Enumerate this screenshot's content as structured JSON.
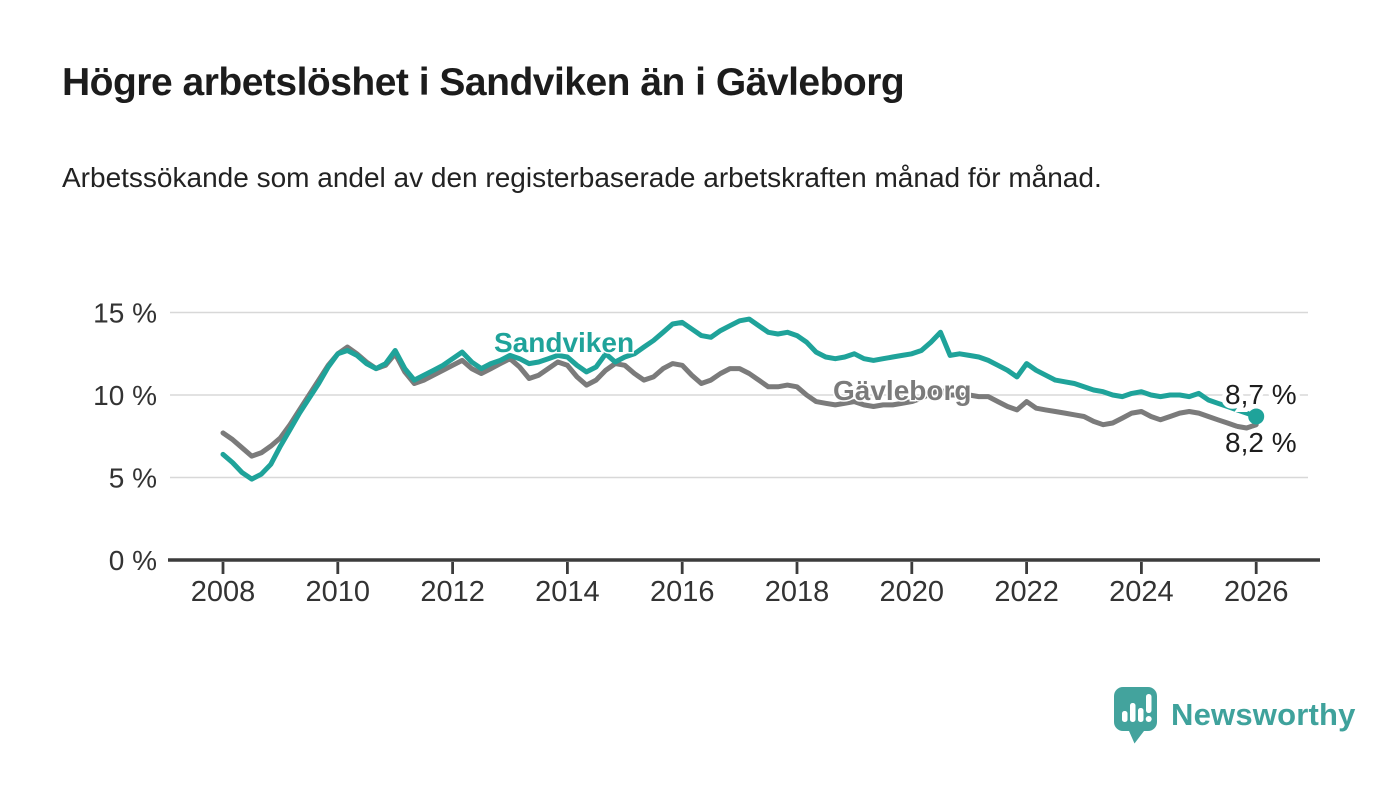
{
  "header": {
    "title": "Högre arbetslöshet i Sandviken än i Gävleborg",
    "subtitle": "Arbetssökande som andel av den registerbaserade arbetskraften månad för månad."
  },
  "chart_data": {
    "type": "line",
    "title": "Högre arbetslöshet i Sandviken än i Gävleborg",
    "subtitle": "Arbetssökande som andel av den registerbaserade arbetskraften månad för månad.",
    "x_unit": "year",
    "x_start": 2008.0,
    "x_step_years": 0.1666667,
    "x_ticks": [
      2008,
      2010,
      2012,
      2014,
      2016,
      2018,
      2020,
      2022,
      2024,
      2026
    ],
    "x_tick_labels": [
      "2008",
      "2010",
      "2012",
      "2014",
      "2016",
      "2018",
      "2020",
      "2022",
      "2024",
      "2026"
    ],
    "y_ticks": [
      0,
      5,
      10,
      15
    ],
    "y_tick_labels": [
      "0 %",
      "5 %",
      "10 %",
      "15 %"
    ],
    "ylim": [
      0,
      16
    ],
    "xlim": [
      2007.05,
      2026.9
    ],
    "grid": "horizontal",
    "legend_position": "inline-labels",
    "grid_color": "#d8d8d8",
    "axis_color": "#3c3c3c",
    "text_color": "#333333",
    "value_label_color": "#1d1d1d",
    "series": [
      {
        "name": "Sandviken",
        "color": "#1fa39a",
        "end_label": "8,7 %",
        "end_value": 8.7,
        "end_dot": true,
        "values": [
          6.4,
          5.9,
          5.3,
          4.9,
          5.2,
          5.8,
          6.9,
          7.9,
          8.9,
          9.8,
          10.7,
          11.7,
          12.5,
          12.7,
          12.4,
          11.9,
          11.6,
          11.9,
          12.7,
          11.6,
          10.9,
          11.2,
          11.5,
          11.8,
          12.2,
          12.6,
          12.0,
          11.6,
          11.9,
          12.1,
          12.4,
          12.2,
          11.9,
          12.0,
          12.2,
          12.4,
          12.3,
          11.8,
          11.4,
          11.7,
          12.5,
          12.0,
          12.3,
          12.5,
          12.9,
          13.3,
          13.8,
          14.3,
          14.4,
          14.0,
          13.6,
          13.5,
          13.9,
          14.2,
          14.5,
          14.6,
          14.2,
          13.8,
          13.7,
          13.8,
          13.6,
          13.2,
          12.6,
          12.3,
          12.2,
          12.3,
          12.5,
          12.2,
          12.1,
          12.2,
          12.3,
          12.4,
          12.5,
          12.7,
          13.2,
          13.8,
          12.4,
          12.5,
          12.4,
          12.3,
          12.1,
          11.8,
          11.5,
          11.1,
          11.9,
          11.5,
          11.2,
          10.9,
          10.8,
          10.7,
          10.5,
          10.3,
          10.2,
          10.0,
          9.9,
          10.1,
          10.2,
          10.0,
          9.9,
          10.0,
          10.0,
          9.9,
          10.1,
          9.7,
          9.5,
          9.3,
          9.1,
          8.9,
          8.7
        ]
      },
      {
        "name": "Gävleborg",
        "color": "#7b7b7b",
        "end_label": "8,2 %",
        "end_value": 8.2,
        "end_dot": false,
        "values": [
          7.7,
          7.3,
          6.8,
          6.3,
          6.5,
          6.9,
          7.4,
          8.2,
          9.1,
          10.0,
          10.9,
          11.8,
          12.5,
          12.9,
          12.5,
          12.0,
          11.6,
          11.8,
          12.5,
          11.4,
          10.7,
          10.9,
          11.2,
          11.5,
          11.8,
          12.1,
          11.6,
          11.3,
          11.6,
          11.9,
          12.2,
          11.7,
          11.0,
          11.2,
          11.6,
          12.0,
          11.8,
          11.1,
          10.6,
          10.9,
          11.5,
          11.9,
          11.8,
          11.3,
          10.9,
          11.1,
          11.6,
          11.9,
          11.8,
          11.2,
          10.7,
          10.9,
          11.3,
          11.6,
          11.6,
          11.3,
          10.9,
          10.5,
          10.5,
          10.6,
          10.5,
          10.0,
          9.6,
          9.5,
          9.4,
          9.5,
          9.6,
          9.4,
          9.3,
          9.4,
          9.4,
          9.5,
          9.6,
          9.8,
          10.1,
          10.3,
          10.0,
          10.0,
          10.0,
          9.9,
          9.9,
          9.6,
          9.3,
          9.1,
          9.6,
          9.2,
          9.1,
          9.0,
          8.9,
          8.8,
          8.7,
          8.4,
          8.2,
          8.3,
          8.6,
          8.9,
          9.0,
          8.7,
          8.5,
          8.7,
          8.9,
          9.0,
          8.9,
          8.7,
          8.5,
          8.3,
          8.1,
          8.0,
          8.2
        ]
      }
    ]
  },
  "footer": {
    "brand": "Newsworthy",
    "brand_color": "#3fa29c",
    "logo_icon": "bar-chart-speech-bubble-icon"
  }
}
